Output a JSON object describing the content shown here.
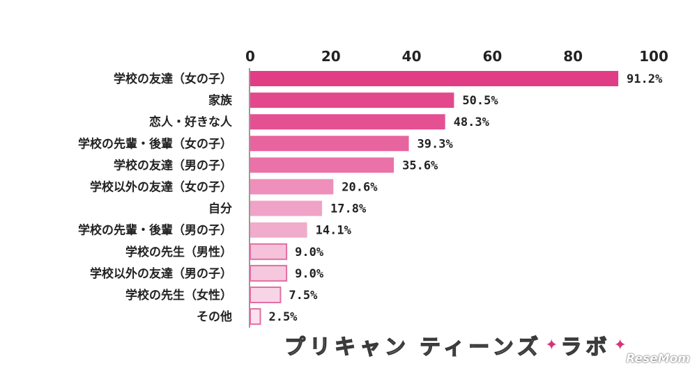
{
  "chart_data": {
    "type": "bar",
    "orientation": "horizontal",
    "axis_position": "top",
    "xlim": [
      0,
      100
    ],
    "ticks": [
      "0",
      "20",
      "40",
      "60",
      "80",
      "100"
    ],
    "categories": [
      "学校の友達（女の子）",
      "家族",
      "恋人・好きな人",
      "学校の先輩・後輩（女の子）",
      "学校の友達（男の子）",
      "学校以外の友達（女の子）",
      "自分",
      "学校の先輩・後輩（男の子）",
      "学校の先生（男性）",
      "学校以外の友達（男の子）",
      "学校の先生（女性）",
      "その他"
    ],
    "values": [
      91.2,
      50.5,
      48.3,
      39.3,
      35.6,
      20.6,
      17.8,
      14.1,
      9.0,
      9.0,
      7.5,
      2.5
    ],
    "value_labels": [
      "91.2%",
      "50.5%",
      "48.3%",
      "39.3%",
      "35.6%",
      "20.6%",
      "17.8%",
      "14.1%",
      "9.0%",
      "9.0%",
      "7.5%",
      "2.5%"
    ],
    "bar_colors": [
      "#e13d85",
      "#e4488c",
      "#e55093",
      "#e8649f",
      "#ea72a8",
      "#ee90bb",
      "#f0a3c6",
      "#f0acca",
      "#f5c2da",
      "#f6c8de",
      "#f8d5e6",
      "#fbe2ee"
    ],
    "bar_border": "#e26ea3"
  },
  "branding": {
    "logo_text_1": "プリキャン",
    "logo_text_2": "ティーンズ",
    "logo_text_3": "ラボ",
    "watermark": "ReseMom"
  }
}
